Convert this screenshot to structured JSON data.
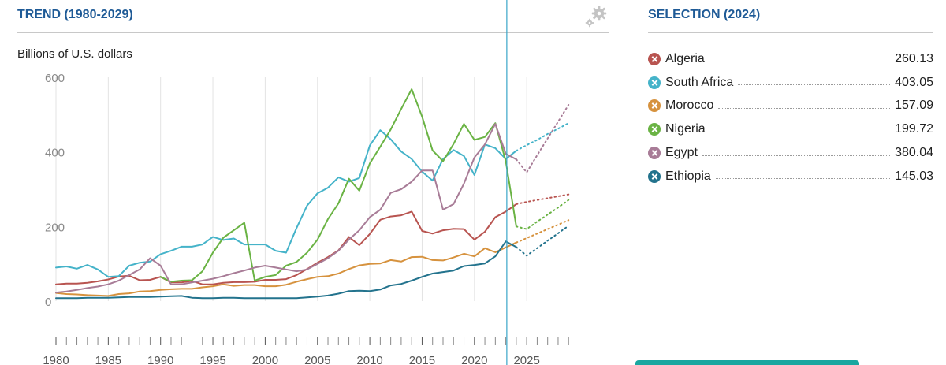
{
  "trend_panel": {
    "title": "TREND (1980-2029)",
    "unit_label": "Billions of U.S. dollars",
    "settings_icon": "gear-icon"
  },
  "selection_panel": {
    "title": "SELECTION (2024)",
    "items": [
      {
        "name": "Algeria",
        "value": "260.13",
        "color": "#b85450",
        "icon": "close-circle-icon"
      },
      {
        "name": "South Africa",
        "value": "403.05",
        "color": "#45b3c9",
        "icon": "close-circle-icon"
      },
      {
        "name": "Morocco",
        "value": "157.09",
        "color": "#d6923e",
        "icon": "close-circle-icon"
      },
      {
        "name": "Nigeria",
        "value": "199.72",
        "color": "#6ab344",
        "icon": "close-circle-icon"
      },
      {
        "name": "Egypt",
        "value": "380.04",
        "color": "#a87c97",
        "icon": "close-circle-icon"
      },
      {
        "name": "Ethiopia",
        "value": "145.03",
        "color": "#23738d",
        "icon": "close-circle-icon"
      }
    ]
  },
  "chart_data": {
    "type": "line",
    "title": "TREND (1980-2029)",
    "ylabel": "Billions of U.S. dollars",
    "xlim": [
      1980,
      2029
    ],
    "ylim": [
      0,
      600
    ],
    "yticks": [
      0,
      200,
      400,
      600
    ],
    "xticks": [
      1980,
      1985,
      1990,
      1995,
      2000,
      2005,
      2010,
      2015,
      2020,
      2025
    ],
    "selected_year": 2024,
    "forecast_from": 2024,
    "grid": "vertical",
    "series": [
      {
        "name": "Algeria",
        "color": "#b85450",
        "x": [
          1980,
          1981,
          1982,
          1983,
          1984,
          1985,
          1986,
          1987,
          1988,
          1989,
          1990,
          1991,
          1992,
          1993,
          1994,
          1995,
          1996,
          1997,
          1998,
          1999,
          2000,
          2001,
          2002,
          2003,
          2004,
          2005,
          2006,
          2007,
          2008,
          2009,
          2010,
          2011,
          2012,
          2013,
          2014,
          2015,
          2016,
          2017,
          2018,
          2019,
          2020,
          2021,
          2022,
          2023,
          2024,
          2025,
          2026,
          2027,
          2028,
          2029
        ],
        "y": [
          45,
          47,
          47,
          49,
          53,
          58,
          66,
          68,
          56,
          57,
          65,
          50,
          50,
          54,
          45,
          45,
          49,
          51,
          51,
          52,
          57,
          57,
          59,
          70,
          86,
          103,
          118,
          136,
          172,
          150,
          180,
          218,
          227,
          230,
          240,
          188,
          181,
          190,
          194,
          193,
          165,
          186,
          225,
          240,
          260,
          266,
          271,
          276,
          281,
          286
        ]
      },
      {
        "name": "South Africa",
        "color": "#45b3c9",
        "x": [
          1980,
          1981,
          1982,
          1983,
          1984,
          1985,
          1986,
          1987,
          1988,
          1989,
          1990,
          1991,
          1992,
          1993,
          1994,
          1995,
          1996,
          1997,
          1998,
          1999,
          2000,
          2001,
          2002,
          2003,
          2004,
          2005,
          2006,
          2007,
          2008,
          2009,
          2010,
          2011,
          2012,
          2013,
          2014,
          2015,
          2016,
          2017,
          2018,
          2019,
          2020,
          2021,
          2022,
          2023,
          2024,
          2025,
          2026,
          2027,
          2028,
          2029
        ],
        "y": [
          90,
          93,
          87,
          97,
          85,
          65,
          67,
          95,
          103,
          106,
          126,
          135,
          146,
          146,
          152,
          172,
          164,
          168,
          152,
          152,
          152,
          135,
          130,
          196,
          256,
          289,
          304,
          332,
          320,
          330,
          417,
          458,
          434,
          401,
          381,
          347,
          323,
          381,
          405,
          389,
          338,
          420,
          410,
          381,
          403,
          418,
          432,
          448,
          462,
          477
        ]
      },
      {
        "name": "Morocco",
        "color": "#d6923e",
        "x": [
          1980,
          1981,
          1982,
          1983,
          1984,
          1985,
          1986,
          1987,
          1988,
          1989,
          1990,
          1991,
          1992,
          1993,
          1994,
          1995,
          1996,
          1997,
          1998,
          1999,
          2000,
          2001,
          2002,
          2003,
          2004,
          2005,
          2006,
          2007,
          2008,
          2009,
          2010,
          2011,
          2012,
          2013,
          2014,
          2015,
          2016,
          2017,
          2018,
          2019,
          2020,
          2021,
          2022,
          2023,
          2024,
          2025,
          2026,
          2027,
          2028,
          2029
        ],
        "y": [
          22,
          19,
          18,
          16,
          15,
          14,
          19,
          21,
          26,
          27,
          30,
          32,
          33,
          33,
          37,
          40,
          45,
          41,
          43,
          43,
          40,
          40,
          44,
          52,
          59,
          65,
          67,
          74,
          86,
          96,
          100,
          101,
          110,
          106,
          118,
          119,
          110,
          109,
          117,
          127,
          120,
          142,
          131,
          144,
          157,
          169,
          181,
          193,
          205,
          217
        ]
      },
      {
        "name": "Nigeria",
        "color": "#6ab344",
        "x": [
          1980,
          1981,
          1982,
          1983,
          1984,
          1985,
          1986,
          1987,
          1988,
          1989,
          1990,
          1991,
          1992,
          1993,
          1994,
          1995,
          1996,
          1997,
          1998,
          1999,
          2000,
          2001,
          2002,
          2003,
          2004,
          2005,
          2006,
          2007,
          2008,
          2009,
          2010,
          2011,
          2012,
          2013,
          2014,
          2015,
          2016,
          2017,
          2018,
          2019,
          2020,
          2021,
          2022,
          2023,
          2024,
          2025,
          2026,
          2027,
          2028,
          2029
        ],
        "y": [
          null,
          null,
          null,
          null,
          null,
          null,
          null,
          null,
          null,
          null,
          65,
          52,
          55,
          56,
          80,
          130,
          170,
          190,
          210,
          55,
          65,
          70,
          95,
          105,
          130,
          165,
          220,
          262,
          328,
          296,
          369,
          414,
          460,
          515,
          568,
          494,
          404,
          375,
          421,
          475,
          432,
          440,
          477,
          375,
          200,
          193,
          213,
          232,
          251,
          271
        ]
      },
      {
        "name": "Egypt",
        "color": "#a87c97",
        "x": [
          1980,
          1981,
          1982,
          1983,
          1984,
          1985,
          1986,
          1987,
          1988,
          1989,
          1990,
          1991,
          1992,
          1993,
          1994,
          1995,
          1996,
          1997,
          1998,
          1999,
          2000,
          2001,
          2002,
          2003,
          2004,
          2005,
          2006,
          2007,
          2008,
          2009,
          2010,
          2011,
          2012,
          2013,
          2014,
          2015,
          2016,
          2017,
          2018,
          2019,
          2020,
          2021,
          2022,
          2023,
          2024,
          2025,
          2026,
          2027,
          2028,
          2029
        ],
        "y": [
          23,
          26,
          30,
          35,
          39,
          45,
          55,
          70,
          85,
          115,
          95,
          45,
          45,
          50,
          55,
          60,
          67,
          75,
          82,
          90,
          95,
          90,
          85,
          80,
          85,
          100,
          115,
          135,
          165,
          190,
          225,
          245,
          290,
          300,
          320,
          350,
          350,
          245,
          260,
          315,
          385,
          420,
          475,
          395,
          380,
          345,
          391,
          436,
          481,
          526
        ]
      },
      {
        "name": "Ethiopia",
        "color": "#23738d",
        "x": [
          1980,
          1981,
          1982,
          1983,
          1984,
          1985,
          1986,
          1987,
          1988,
          1989,
          1990,
          1991,
          1992,
          1993,
          1994,
          1995,
          1996,
          1997,
          1998,
          1999,
          2000,
          2001,
          2002,
          2003,
          2004,
          2005,
          2006,
          2007,
          2008,
          2009,
          2010,
          2011,
          2012,
          2013,
          2014,
          2015,
          2016,
          2017,
          2018,
          2019,
          2020,
          2021,
          2022,
          2023,
          2024,
          2025,
          2026,
          2027,
          2028,
          2029
        ],
        "y": [
          8,
          8,
          8,
          9,
          9,
          9,
          10,
          11,
          11,
          11,
          12,
          13,
          14,
          9,
          8,
          8,
          9,
          9,
          8,
          8,
          8,
          8,
          8,
          8,
          10,
          12,
          15,
          20,
          27,
          28,
          27,
          31,
          42,
          46,
          55,
          65,
          74,
          78,
          82,
          94,
          97,
          101,
          120,
          160,
          145,
          122,
          142,
          162,
          182,
          202
        ]
      }
    ]
  }
}
